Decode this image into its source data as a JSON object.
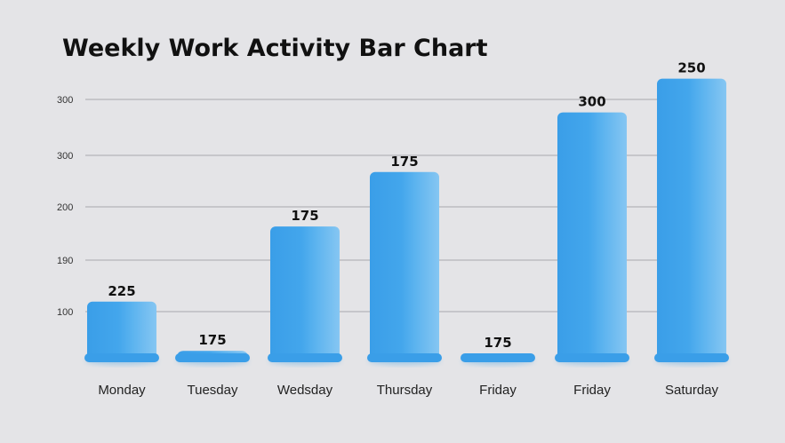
{
  "chart_data": {
    "type": "bar",
    "title": "Weekly Work Activity Bar Chart",
    "xlabel": "",
    "ylabel": "",
    "categories": [
      "Monday",
      "Tuesday",
      "Wedsday",
      "Thursday",
      "Friday",
      "Friday",
      "Saturday"
    ],
    "values": [
      225,
      175,
      175,
      175,
      175,
      300,
      250
    ],
    "data_labels": [
      "225",
      "175",
      "175",
      "175",
      "175",
      "300",
      "250"
    ],
    "bar_levels": [
      0.22,
      0.03,
      0.51,
      0.72,
      0.02,
      0.95,
      1.08
    ],
    "y_tick_labels": [
      "300",
      "300",
      "200",
      "190",
      "100"
    ],
    "grid": true,
    "legend": "none",
    "bar_color": "#3fa3ea"
  }
}
